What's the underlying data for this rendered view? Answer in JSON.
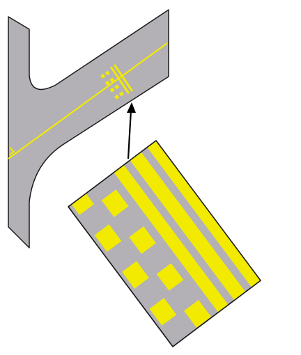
{
  "figure": {
    "type": "runway holding position markings diagram",
    "colors": {
      "background": "#ffffff",
      "pavement": "#b3b1b6",
      "marking": "#f2ea00",
      "outline": "#1a1a1a",
      "arrow": "#000000"
    },
    "parts": [
      "taxiway-pavement-overview",
      "taxiway-centerline",
      "holding-position-marking-small",
      "callout-arrow",
      "holding-position-marking-enlarged"
    ]
  }
}
